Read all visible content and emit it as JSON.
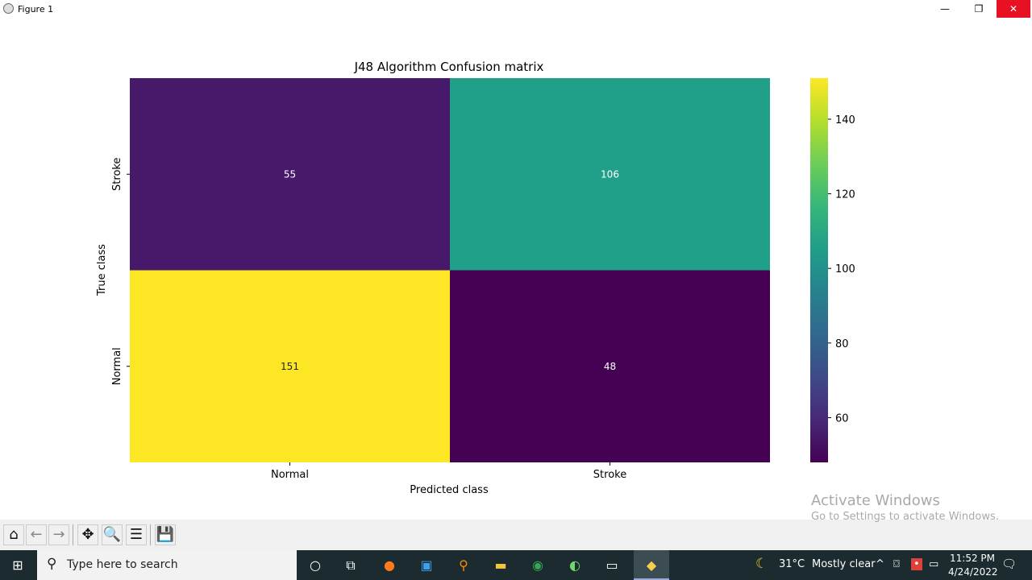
{
  "window": {
    "title": "Figure 1",
    "minimize_icon": "minimize-icon",
    "restore_icon": "restore-icon",
    "close_icon": "close-icon"
  },
  "chart_data": {
    "type": "heatmap",
    "title": "J48 Algorithm Confusion matrix",
    "xlabel": "Predicted class",
    "ylabel": "True class",
    "x_categories": [
      "Normal",
      "Stroke"
    ],
    "y_categories": [
      "Stroke",
      "Normal"
    ],
    "values": [
      [
        55,
        106
      ],
      [
        151,
        48
      ]
    ],
    "colormap": "viridis",
    "colorbar": {
      "range": [
        48,
        151
      ],
      "ticks": [
        60,
        80,
        100,
        120,
        140
      ]
    }
  },
  "toolbar": {
    "buttons": [
      {
        "name": "home",
        "icon": "home-icon",
        "glyph": "⌂"
      },
      {
        "name": "back",
        "icon": "arrow-left-icon",
        "glyph": "←"
      },
      {
        "name": "forward",
        "icon": "arrow-right-icon",
        "glyph": "→"
      },
      {
        "name": "pan",
        "icon": "move-icon",
        "glyph": "✥"
      },
      {
        "name": "zoom",
        "icon": "magnifier-icon",
        "glyph": "🔍"
      },
      {
        "name": "configure",
        "icon": "sliders-icon",
        "glyph": "☰"
      },
      {
        "name": "save",
        "icon": "floppy-icon",
        "glyph": "💾"
      }
    ]
  },
  "watermark": {
    "line1": "Activate Windows",
    "line2": "Go to Settings to activate Windows."
  },
  "taskbar": {
    "search_placeholder": "Type here to search",
    "weather": {
      "temp": "31°C",
      "condition": "Mostly clear"
    },
    "time": "11:52 PM",
    "date": "4/24/2022"
  }
}
